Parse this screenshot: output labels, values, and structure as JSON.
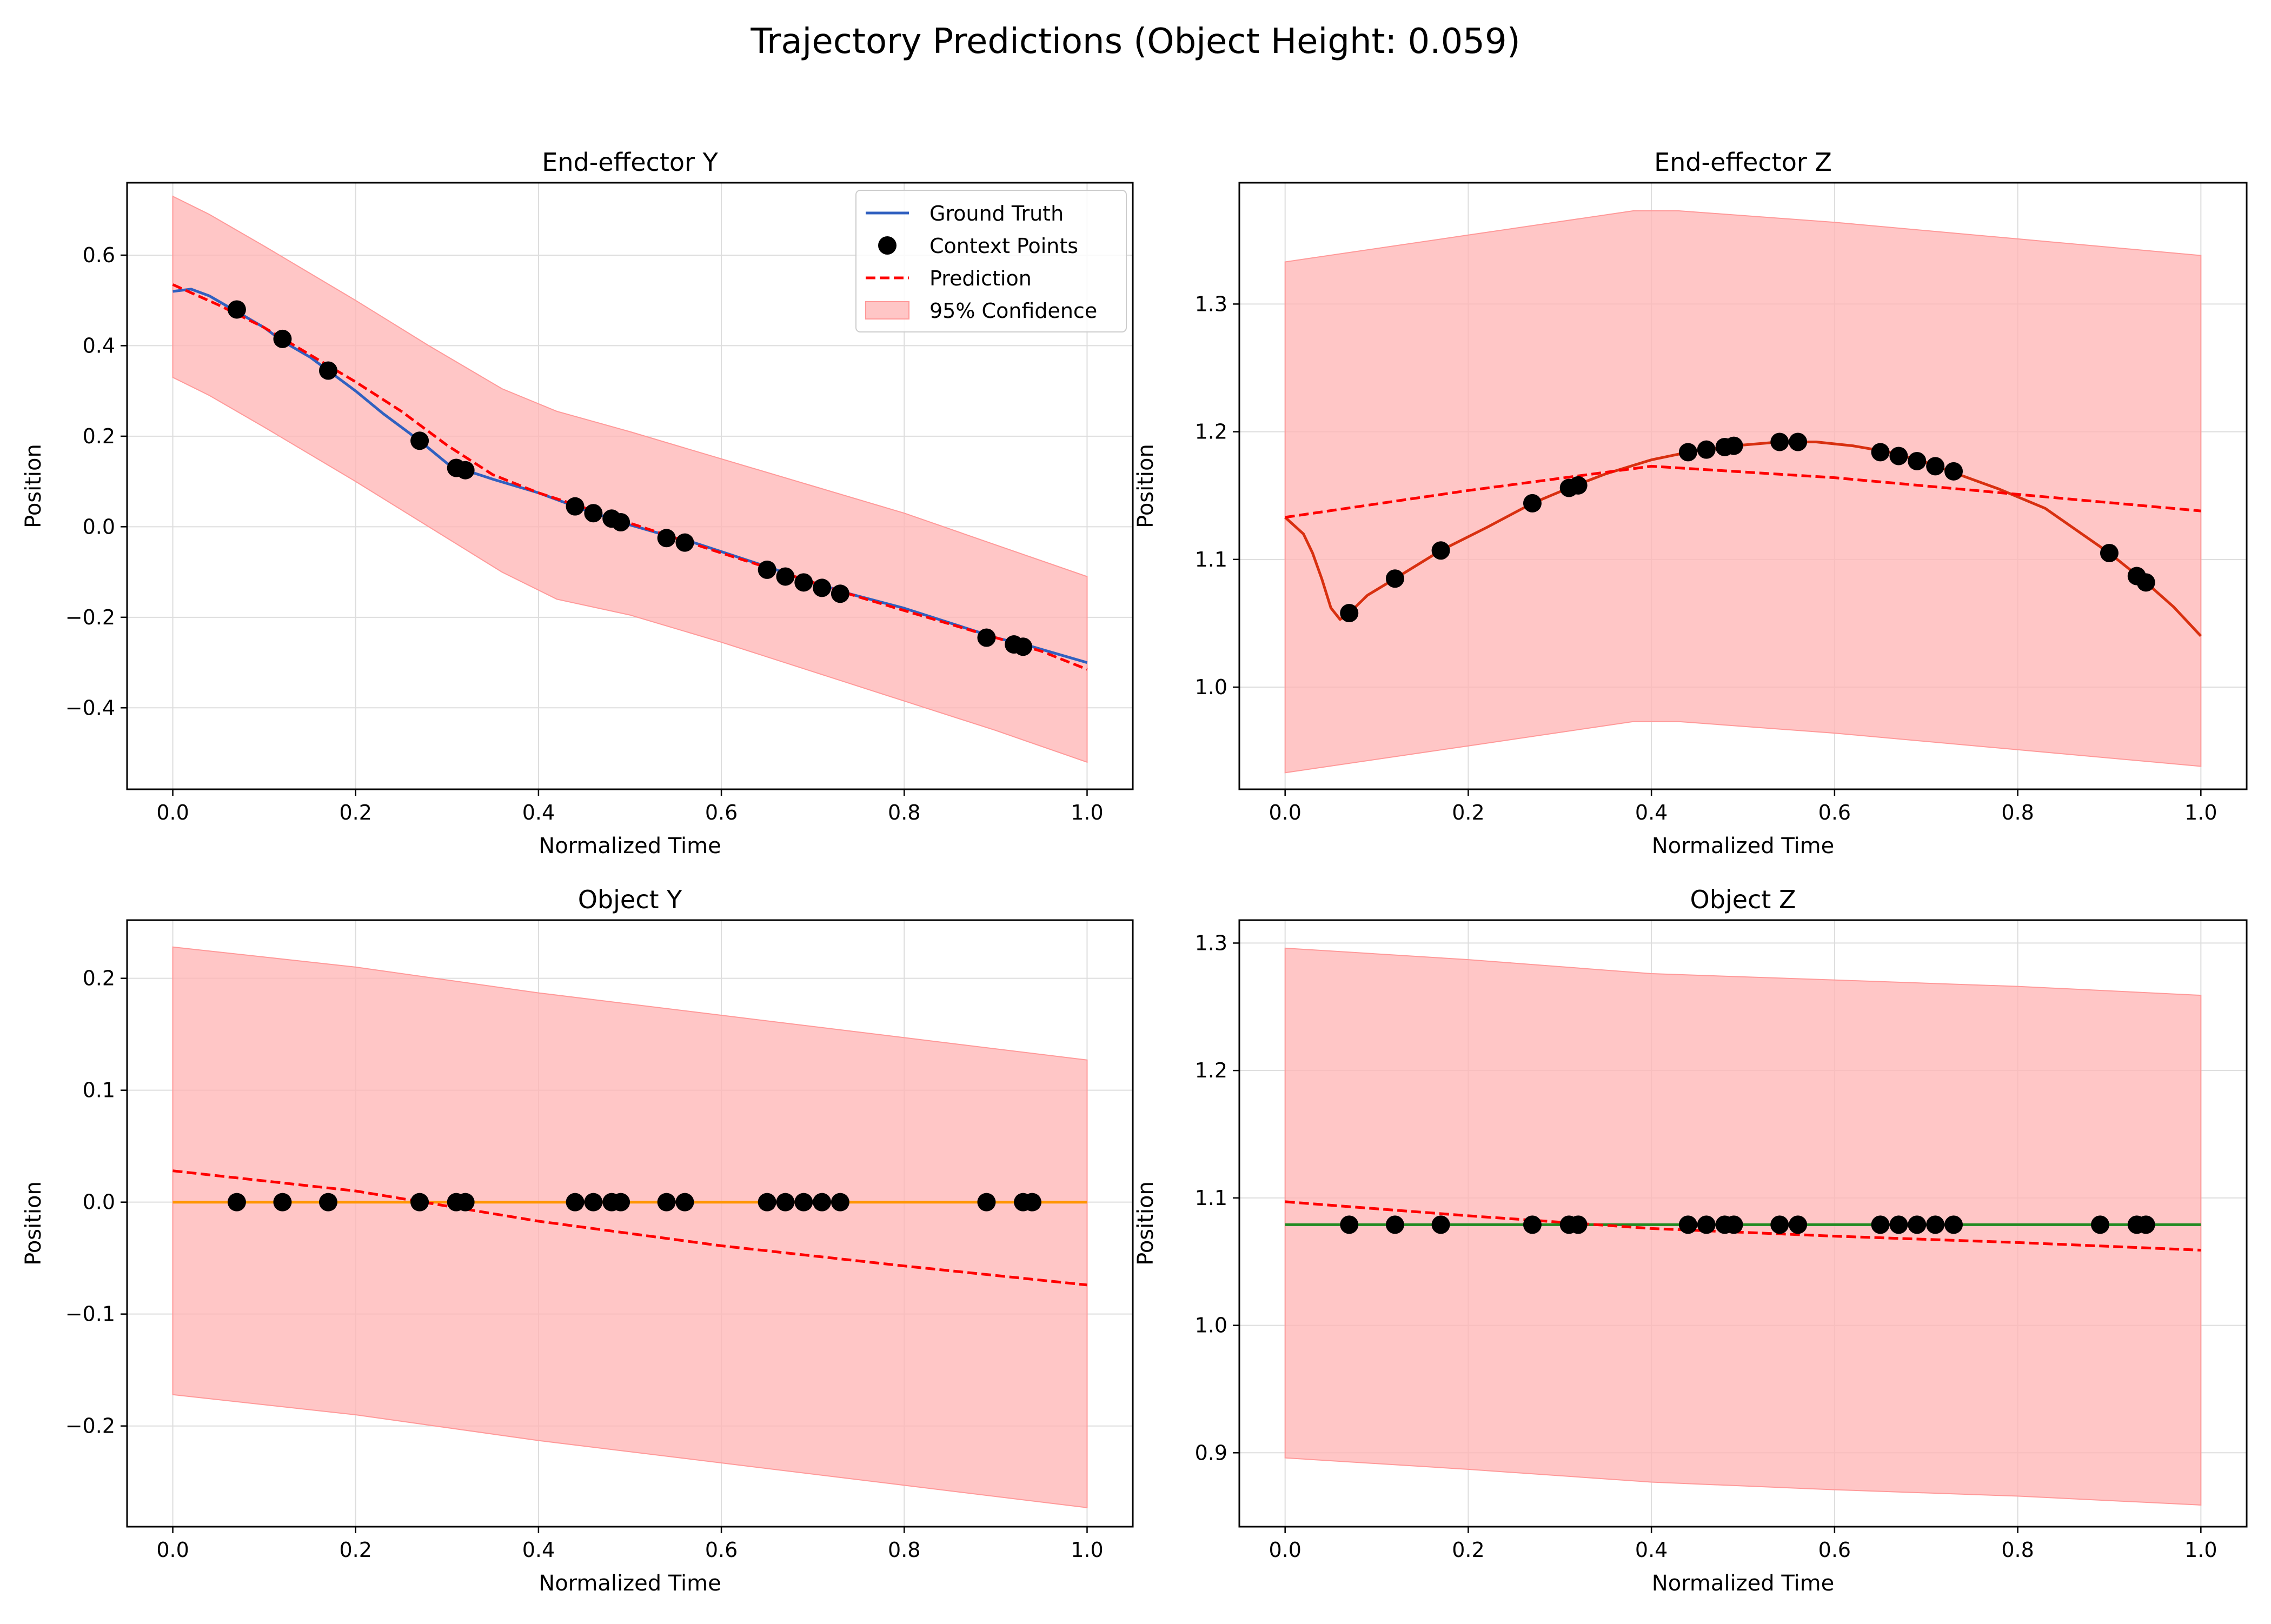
{
  "figure": {
    "suptitle": "Trajectory Predictions (Object Height: 0.059)"
  },
  "colors": {
    "ground_truth_ee": "#3060c0",
    "ground_truth_ee_z": "#d83010",
    "object_y_truth": "#ff9500",
    "object_z_truth": "#228b22",
    "prediction": "#ff0000",
    "confidence_fill": "#ffb3b3",
    "confidence_edge": "#ff9999",
    "context_points": "#000000",
    "grid": "#dddddd"
  },
  "chart_data": [
    {
      "type": "line",
      "title": "End-effector Y",
      "xlabel": "Normalized Time",
      "ylabel": "Position",
      "xlim": [
        -0.05,
        1.05
      ],
      "ylim": [
        -0.58,
        0.76
      ],
      "xticks": [
        0.0,
        0.2,
        0.4,
        0.6,
        0.8,
        1.0
      ],
      "xtick_labels": [
        "0.0",
        "0.2",
        "0.4",
        "0.6",
        "0.8",
        "1.0"
      ],
      "yticks": [
        -0.4,
        -0.2,
        0.0,
        0.2,
        0.4,
        0.6
      ],
      "ytick_labels": [
        "−0.4",
        "−0.2",
        "0.0",
        "0.2",
        "0.4",
        "0.6"
      ],
      "grid": true,
      "legend": {
        "placement": "upper right",
        "entries": [
          "Ground Truth",
          "Context Points",
          "Prediction",
          "95% Confidence"
        ]
      },
      "truth_color": "#3060c0",
      "ground_truth": {
        "x": [
          0,
          0.02,
          0.04,
          0.07,
          0.1,
          0.12,
          0.15,
          0.17,
          0.2,
          0.23,
          0.27,
          0.3,
          0.31,
          0.32,
          0.35,
          0.4,
          0.44,
          0.46,
          0.48,
          0.49,
          0.55,
          0.57,
          0.6,
          0.66,
          0.68,
          0.7,
          0.72,
          0.74,
          0.8,
          0.9,
          0.93,
          0.94,
          1.0
        ],
        "y": [
          0.52,
          0.525,
          0.51,
          0.475,
          0.44,
          0.41,
          0.375,
          0.345,
          0.3,
          0.25,
          0.19,
          0.14,
          0.13,
          0.125,
          0.105,
          0.075,
          0.045,
          0.03,
          0.018,
          0.01,
          -0.025,
          -0.035,
          -0.055,
          -0.095,
          -0.11,
          -0.123,
          -0.135,
          -0.148,
          -0.18,
          -0.245,
          -0.26,
          -0.265,
          -0.3
        ]
      },
      "prediction": {
        "x": [
          0,
          0.05,
          0.1,
          0.15,
          0.2,
          0.25,
          0.3,
          0.35,
          0.4,
          0.45,
          0.5,
          0.55,
          0.6,
          0.65,
          0.7,
          0.75,
          0.8,
          0.85,
          0.9,
          0.95,
          1.0
        ],
        "y": [
          0.535,
          0.49,
          0.44,
          0.38,
          0.32,
          0.255,
          0.18,
          0.115,
          0.075,
          0.042,
          0.008,
          -0.025,
          -0.058,
          -0.09,
          -0.123,
          -0.155,
          -0.185,
          -0.215,
          -0.245,
          -0.275,
          -0.315
        ]
      },
      "confidence": {
        "x": [
          0,
          0.04,
          0.1,
          0.2,
          0.28,
          0.36,
          0.42,
          0.5,
          0.6,
          0.7,
          0.8,
          0.9,
          1.0
        ],
        "upper": [
          0.73,
          0.69,
          0.62,
          0.5,
          0.4,
          0.305,
          0.255,
          0.21,
          0.15,
          0.09,
          0.03,
          -0.04,
          -0.11
        ],
        "lower": [
          0.33,
          0.29,
          0.22,
          0.1,
          0.0,
          -0.1,
          -0.16,
          -0.195,
          -0.255,
          -0.32,
          -0.385,
          -0.45,
          -0.52
        ]
      },
      "context_points": {
        "x": [
          0.07,
          0.12,
          0.17,
          0.27,
          0.31,
          0.32,
          0.44,
          0.46,
          0.48,
          0.49,
          0.54,
          0.56,
          0.65,
          0.67,
          0.69,
          0.71,
          0.73,
          0.89,
          0.92,
          0.93
        ],
        "y": [
          0.48,
          0.415,
          0.345,
          0.19,
          0.13,
          0.125,
          0.045,
          0.03,
          0.018,
          0.01,
          -0.025,
          -0.035,
          -0.095,
          -0.11,
          -0.123,
          -0.135,
          -0.148,
          -0.245,
          -0.26,
          -0.265
        ]
      }
    },
    {
      "type": "line",
      "title": "End-effector Z",
      "xlabel": "Normalized Time",
      "ylabel": "Position",
      "xlim": [
        -0.05,
        1.05
      ],
      "ylim": [
        0.92,
        1.395
      ],
      "xticks": [
        0.0,
        0.2,
        0.4,
        0.6,
        0.8,
        1.0
      ],
      "xtick_labels": [
        "0.0",
        "0.2",
        "0.4",
        "0.6",
        "0.8",
        "1.0"
      ],
      "yticks": [
        1.0,
        1.1,
        1.2,
        1.3
      ],
      "ytick_labels": [
        "1.0",
        "1.1",
        "1.2",
        "1.3"
      ],
      "grid": true,
      "truth_color": "#d83010",
      "ground_truth": {
        "x": [
          0,
          0.02,
          0.03,
          0.04,
          0.05,
          0.06,
          0.07,
          0.09,
          0.12,
          0.17,
          0.22,
          0.27,
          0.31,
          0.35,
          0.4,
          0.44,
          0.49,
          0.54,
          0.58,
          0.62,
          0.66,
          0.7,
          0.73,
          0.78,
          0.83,
          0.87,
          0.9,
          0.94,
          0.97,
          1.0
        ],
        "y": [
          1.133,
          1.12,
          1.105,
          1.085,
          1.062,
          1.053,
          1.058,
          1.072,
          1.085,
          1.107,
          1.125,
          1.144,
          1.156,
          1.167,
          1.178,
          1.184,
          1.189,
          1.192,
          1.192,
          1.189,
          1.184,
          1.176,
          1.168,
          1.155,
          1.14,
          1.12,
          1.105,
          1.082,
          1.063,
          1.04
        ]
      },
      "prediction": {
        "x": [
          0,
          0.2,
          0.4,
          0.6,
          0.8,
          1.0
        ],
        "y": [
          1.133,
          1.154,
          1.173,
          1.164,
          1.151,
          1.138
        ]
      },
      "confidence": {
        "x": [
          0,
          0.2,
          0.38,
          0.43,
          0.6,
          0.8,
          1.0
        ],
        "upper": [
          1.333,
          1.354,
          1.373,
          1.373,
          1.364,
          1.351,
          1.338
        ],
        "lower": [
          0.933,
          0.954,
          0.973,
          0.973,
          0.964,
          0.951,
          0.938
        ]
      },
      "context_points": {
        "x": [
          0.07,
          0.12,
          0.17,
          0.27,
          0.31,
          0.32,
          0.44,
          0.46,
          0.48,
          0.49,
          0.54,
          0.56,
          0.65,
          0.67,
          0.69,
          0.71,
          0.73,
          0.9,
          0.93,
          0.94
        ],
        "y": [
          1.058,
          1.085,
          1.107,
          1.144,
          1.156,
          1.158,
          1.184,
          1.186,
          1.188,
          1.189,
          1.192,
          1.192,
          1.184,
          1.181,
          1.177,
          1.173,
          1.169,
          1.105,
          1.087,
          1.082
        ]
      }
    },
    {
      "type": "line",
      "title": "Object Y",
      "xlabel": "Normalized Time",
      "ylabel": "Position",
      "xlim": [
        -0.05,
        1.05
      ],
      "ylim": [
        -0.29,
        0.252
      ],
      "xticks": [
        0.0,
        0.2,
        0.4,
        0.6,
        0.8,
        1.0
      ],
      "xtick_labels": [
        "0.0",
        "0.2",
        "0.4",
        "0.6",
        "0.8",
        "1.0"
      ],
      "yticks": [
        -0.2,
        -0.1,
        0.0,
        0.1,
        0.2
      ],
      "ytick_labels": [
        "−0.2",
        "−0.1",
        "0.0",
        "0.1",
        "0.2"
      ],
      "grid": true,
      "truth_color": "#ff9500",
      "ground_truth": {
        "x": [
          0,
          1.0
        ],
        "y": [
          0.0,
          0.0
        ]
      },
      "prediction": {
        "x": [
          0,
          0.2,
          0.4,
          0.6,
          0.8,
          1.0
        ],
        "y": [
          0.028,
          0.01,
          -0.017,
          -0.039,
          -0.057,
          -0.074
        ]
      },
      "confidence": {
        "x": [
          0,
          0.2,
          0.4,
          0.6,
          0.8,
          1.0
        ],
        "upper": [
          0.228,
          0.21,
          0.187,
          0.167,
          0.147,
          0.127
        ],
        "lower": [
          -0.172,
          -0.19,
          -0.213,
          -0.233,
          -0.253,
          -0.273
        ]
      },
      "context_points": {
        "x": [
          0.07,
          0.12,
          0.17,
          0.27,
          0.31,
          0.32,
          0.44,
          0.46,
          0.48,
          0.49,
          0.54,
          0.56,
          0.65,
          0.67,
          0.69,
          0.71,
          0.73,
          0.89,
          0.93,
          0.94
        ],
        "y": [
          0,
          0,
          0,
          0,
          0,
          0,
          0,
          0,
          0,
          0,
          0,
          0,
          0,
          0,
          0,
          0,
          0,
          0,
          0,
          0
        ]
      }
    },
    {
      "type": "line",
      "title": "Object Z",
      "xlabel": "Normalized Time",
      "ylabel": "Position",
      "xlim": [
        -0.05,
        1.05
      ],
      "ylim": [
        0.842,
        1.318
      ],
      "xticks": [
        0.0,
        0.2,
        0.4,
        0.6,
        0.8,
        1.0
      ],
      "xtick_labels": [
        "0.0",
        "0.2",
        "0.4",
        "0.6",
        "0.8",
        "1.0"
      ],
      "yticks": [
        0.9,
        1.0,
        1.1,
        1.2,
        1.3
      ],
      "ytick_labels": [
        "0.9",
        "1.0",
        "1.1",
        "1.2",
        "1.3"
      ],
      "grid": true,
      "truth_color": "#228b22",
      "ground_truth": {
        "x": [
          0,
          1.0
        ],
        "y": [
          1.079,
          1.079
        ]
      },
      "prediction": {
        "x": [
          0,
          0.2,
          0.4,
          0.6,
          0.8,
          1.0
        ],
        "y": [
          1.097,
          1.086,
          1.076,
          1.07,
          1.065,
          1.059
        ]
      },
      "confidence": {
        "x": [
          0,
          0.2,
          0.4,
          0.6,
          0.8,
          1.0
        ],
        "upper": [
          1.296,
          1.287,
          1.276,
          1.271,
          1.266,
          1.259
        ],
        "lower": [
          0.896,
          0.887,
          0.877,
          0.871,
          0.866,
          0.859
        ]
      },
      "context_points": {
        "x": [
          0.07,
          0.12,
          0.17,
          0.27,
          0.31,
          0.32,
          0.44,
          0.46,
          0.48,
          0.49,
          0.54,
          0.56,
          0.65,
          0.67,
          0.69,
          0.71,
          0.73,
          0.89,
          0.93,
          0.94
        ],
        "y": [
          1.079,
          1.079,
          1.079,
          1.079,
          1.079,
          1.079,
          1.079,
          1.079,
          1.079,
          1.079,
          1.079,
          1.079,
          1.079,
          1.079,
          1.079,
          1.079,
          1.079,
          1.079,
          1.079,
          1.079
        ]
      }
    }
  ]
}
